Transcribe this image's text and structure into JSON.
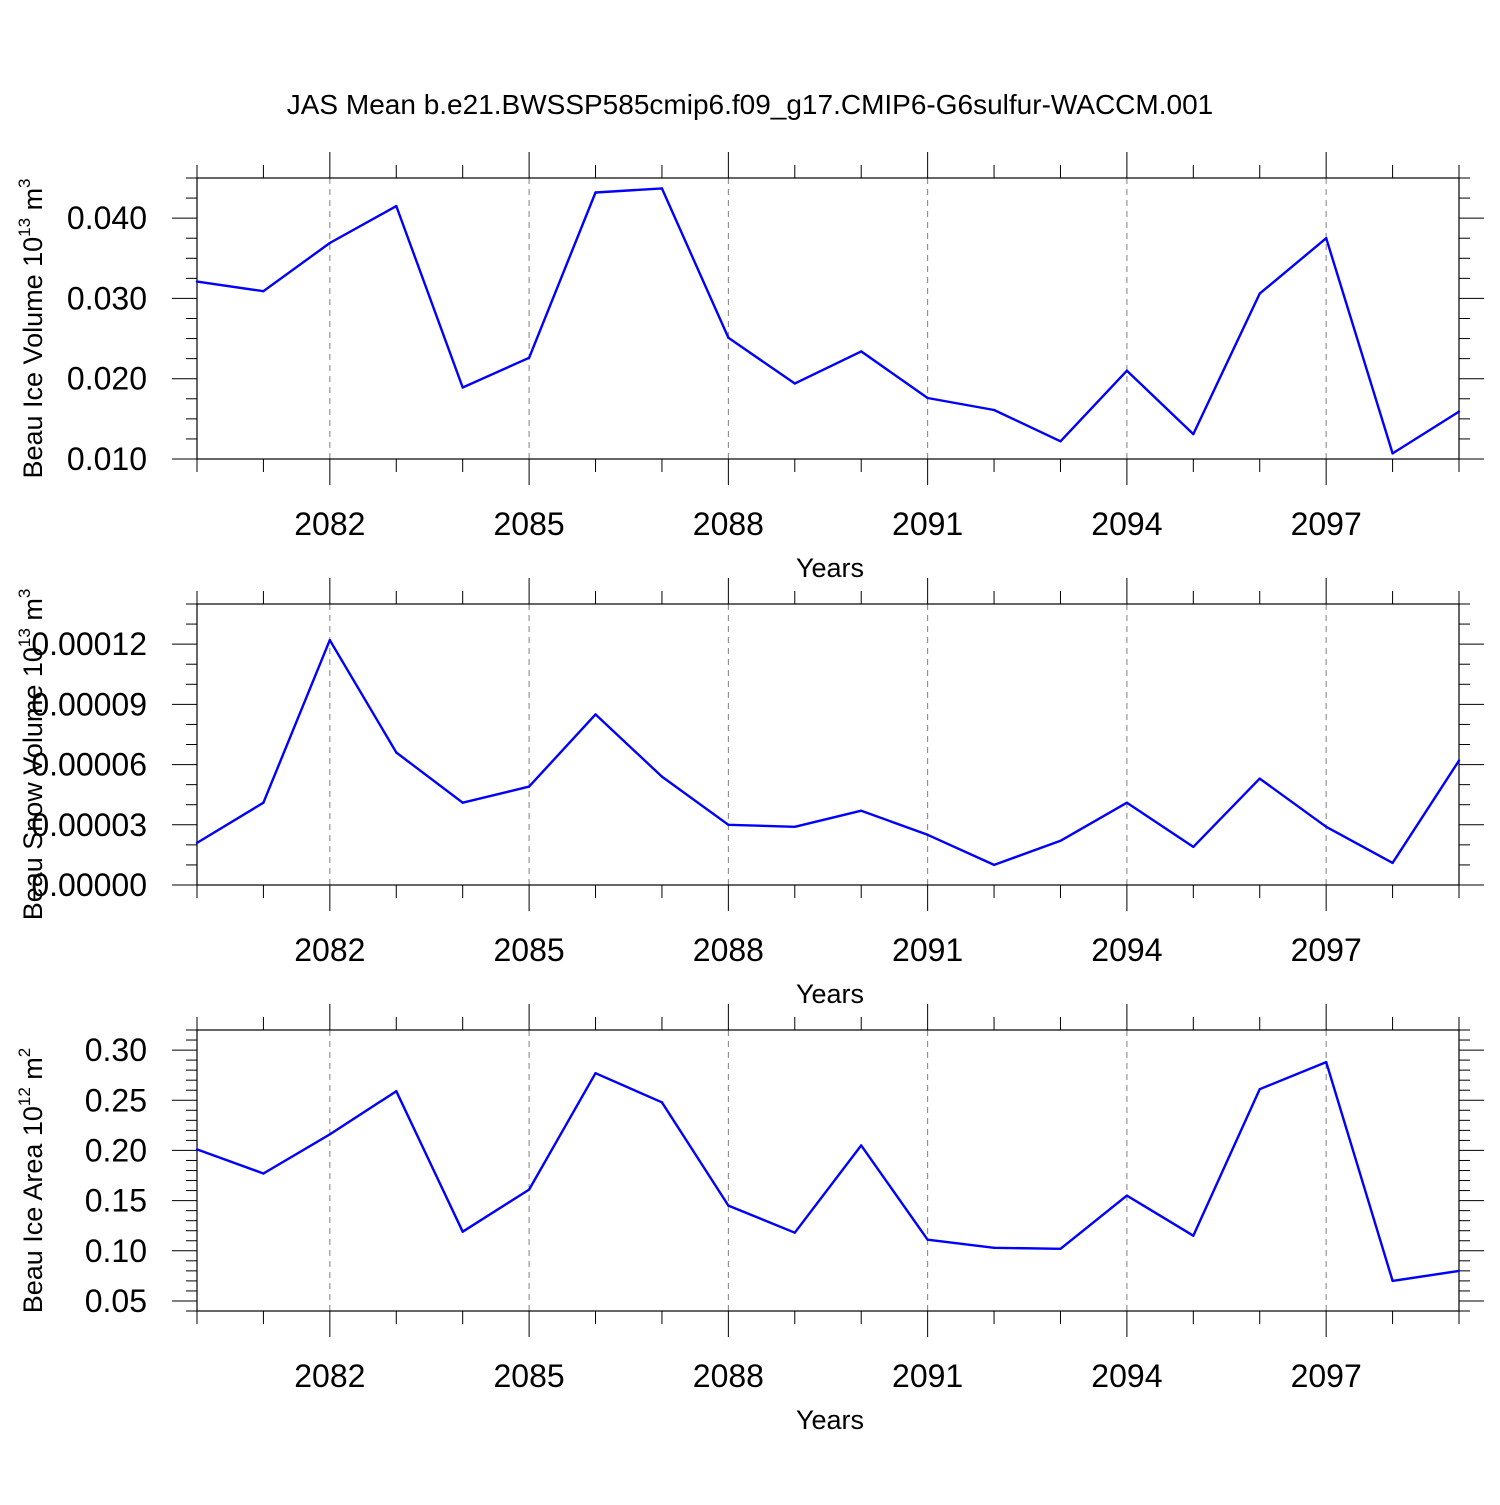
{
  "figure_title": "JAS Mean b.e21.BWSSP585cmip6.f09_g17.CMIP6-G6sulfur-WACCM.001",
  "colors": {
    "line": "#0000ff",
    "axis": "#000000",
    "grid": "#808080",
    "background": "#ffffff"
  },
  "chart_data": [
    {
      "type": "line",
      "title": "JAS Mean b.e21.BWSSP585cmip6.f09_g17.CMIP6-G6sulfur-WACCM.001",
      "xlabel": "Years",
      "ylabel": {
        "text": "Beau Ice Volume 10",
        "sup": "13",
        "unit": " m",
        "unit_sup": "3"
      },
      "xlim": [
        2080,
        2099
      ],
      "ylim": [
        0.01,
        0.045
      ],
      "x_ticks": [
        2082,
        2085,
        2088,
        2091,
        2094,
        2097
      ],
      "x_tick_labels": [
        "2082",
        "2085",
        "2088",
        "2091",
        "2094",
        "2097"
      ],
      "y_ticks": [
        0.01,
        0.02,
        0.03,
        0.04
      ],
      "y_tick_labels": [
        "0.010",
        "0.020",
        "0.030",
        "0.040"
      ],
      "y_minor_step": 0.0025,
      "grid": "vertical dashed at major x ticks",
      "series": [
        {
          "name": "Beau Ice Volume",
          "x": [
            2080,
            2081,
            2082,
            2083,
            2084,
            2085,
            2086,
            2087,
            2088,
            2089,
            2090,
            2091,
            2092,
            2093,
            2094,
            2095,
            2096,
            2097,
            2098,
            2099
          ],
          "values": [
            0.0321,
            0.0309,
            0.0369,
            0.0415,
            0.0189,
            0.0226,
            0.0432,
            0.0437,
            0.0251,
            0.0194,
            0.0234,
            0.0176,
            0.0161,
            0.0122,
            0.021,
            0.0131,
            0.0306,
            0.0375,
            0.0107,
            0.0159
          ]
        }
      ]
    },
    {
      "type": "line",
      "xlabel": "Years",
      "ylabel": {
        "text": "Beau Snow Volume 10",
        "sup": "13",
        "unit": " m",
        "unit_sup": "3"
      },
      "xlim": [
        2080,
        2099
      ],
      "ylim": [
        0.0,
        0.00014
      ],
      "x_ticks": [
        2082,
        2085,
        2088,
        2091,
        2094,
        2097
      ],
      "x_tick_labels": [
        "2082",
        "2085",
        "2088",
        "2091",
        "2094",
        "2097"
      ],
      "y_ticks": [
        0.0,
        3e-05,
        6e-05,
        9e-05,
        0.00012
      ],
      "y_tick_labels": [
        "0.00000",
        "0.00003",
        "0.00006",
        "0.00009",
        "0.00012"
      ],
      "y_minor_step": 1e-05,
      "grid": "vertical dashed at major x ticks",
      "series": [
        {
          "name": "Beau Snow Volume",
          "x": [
            2080,
            2081,
            2082,
            2083,
            2084,
            2085,
            2086,
            2087,
            2088,
            2089,
            2090,
            2091,
            2092,
            2093,
            2094,
            2095,
            2096,
            2097,
            2098,
            2099
          ],
          "values": [
            2.1e-05,
            4.1e-05,
            0.000122,
            6.6e-05,
            4.1e-05,
            4.9e-05,
            8.5e-05,
            5.4e-05,
            3e-05,
            2.9e-05,
            3.7e-05,
            2.5e-05,
            1e-05,
            2.2e-05,
            4.1e-05,
            1.9e-05,
            5.3e-05,
            2.9e-05,
            1.1e-05,
            6.2e-05
          ]
        }
      ]
    },
    {
      "type": "line",
      "xlabel": "Years",
      "ylabel": {
        "text": "Beau Ice Area 10",
        "sup": "12",
        "unit": " m",
        "unit_sup": "2"
      },
      "xlim": [
        2080,
        2099
      ],
      "ylim": [
        0.04,
        0.32
      ],
      "x_ticks": [
        2082,
        2085,
        2088,
        2091,
        2094,
        2097
      ],
      "x_tick_labels": [
        "2082",
        "2085",
        "2088",
        "2091",
        "2094",
        "2097"
      ],
      "y_ticks": [
        0.05,
        0.1,
        0.15,
        0.2,
        0.25,
        0.3
      ],
      "y_tick_labels": [
        "0.05",
        "0.10",
        "0.15",
        "0.20",
        "0.25",
        "0.30"
      ],
      "y_minor_step": 0.01,
      "grid": "vertical dashed at major x ticks",
      "series": [
        {
          "name": "Beau Ice Area",
          "x": [
            2080,
            2081,
            2082,
            2083,
            2084,
            2085,
            2086,
            2087,
            2088,
            2089,
            2090,
            2091,
            2092,
            2093,
            2094,
            2095,
            2096,
            2097,
            2098,
            2099
          ],
          "values": [
            0.201,
            0.177,
            0.216,
            0.259,
            0.119,
            0.161,
            0.277,
            0.248,
            0.145,
            0.118,
            0.205,
            0.111,
            0.103,
            0.102,
            0.155,
            0.115,
            0.261,
            0.288,
            0.07,
            0.08
          ]
        }
      ]
    }
  ]
}
